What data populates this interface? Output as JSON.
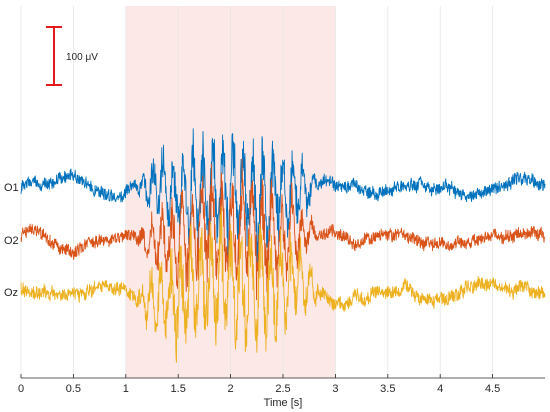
{
  "chart_data": {
    "type": "line",
    "title": "",
    "xlabel": "Time [s]",
    "ylabel": "",
    "xlim": [
      0,
      5
    ],
    "x_ticks": [
      0,
      0.5,
      1,
      1.5,
      2,
      2.5,
      3,
      3.5,
      4,
      4.5
    ],
    "x_tick_labels": [
      "0",
      "0.5",
      "1",
      "1.5",
      "2",
      "2.5",
      "3",
      "3.5",
      "4",
      "4.5"
    ],
    "grid": "vertical",
    "highlight_region": {
      "x_start": 1,
      "x_end": 3,
      "color": "#fde8e8"
    },
    "scale_bar": {
      "label": "100 μV",
      "value_uv": 100,
      "color": "#e41a1c"
    },
    "series": [
      {
        "name": "O1",
        "color": "#0072bd",
        "baseline_amplitude_uv": 18,
        "burst_amplitude_uv": 75,
        "burst_interval": [
          1.1,
          2.85
        ]
      },
      {
        "name": "O2",
        "color": "#d95319",
        "baseline_amplitude_uv": 18,
        "burst_amplitude_uv": 70,
        "burst_interval": [
          1.1,
          2.85
        ]
      },
      {
        "name": "Oz",
        "color": "#edb120",
        "baseline_amplitude_uv": 20,
        "burst_amplitude_uv": 85,
        "burst_interval": [
          1.1,
          2.85
        ]
      }
    ]
  }
}
